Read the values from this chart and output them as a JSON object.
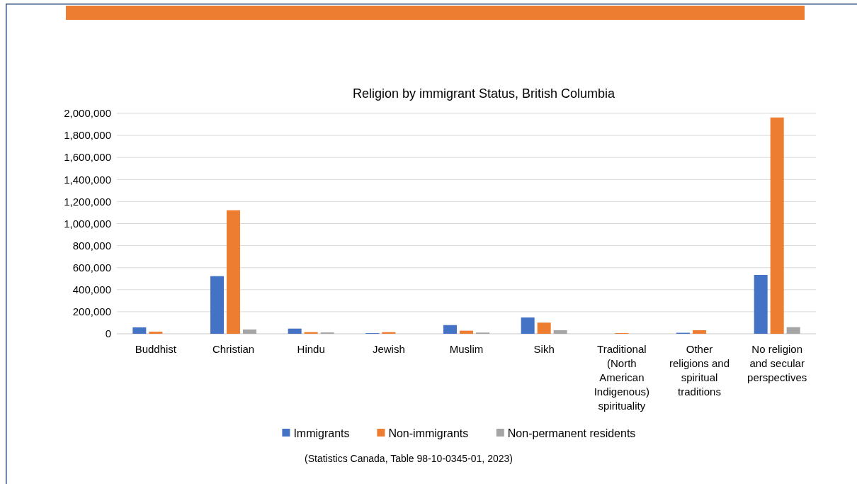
{
  "chart_data": {
    "type": "bar",
    "title": "Religion by immigrant Status, British Columbia",
    "categories": [
      "Buddhist",
      "Christian",
      "Hindu",
      "Jewish",
      "Muslim",
      "Sikh",
      "Traditional (North American Indigenous) spirituality",
      "Other religions and spiritual traditions",
      "No religion and secular perspectives"
    ],
    "series": [
      {
        "name": "Immigrants",
        "color": "#4472c4",
        "values": [
          58000,
          523000,
          47000,
          6000,
          79000,
          148000,
          null,
          9000,
          534000
        ]
      },
      {
        "name": "Non-immigrants",
        "color": "#ed7d31",
        "values": [
          19000,
          1121000,
          15000,
          15000,
          28000,
          101000,
          7000,
          32000,
          1963000
        ]
      },
      {
        "name": "Non-permanent residents",
        "color": "#a5a5a5",
        "values": [
          null,
          39000,
          12000,
          null,
          11000,
          32000,
          null,
          null,
          60000
        ]
      }
    ],
    "ylim": [
      0,
      2000000
    ],
    "yticks": [
      {
        "value": 0,
        "label": "0"
      },
      {
        "value": 200000,
        "label": "200,000"
      },
      {
        "value": 400000,
        "label": "400,000"
      },
      {
        "value": 600000,
        "label": "600,000"
      },
      {
        "value": 800000,
        "label": "800,000"
      },
      {
        "value": 1000000,
        "label": "1,000,000"
      },
      {
        "value": 1200000,
        "label": "1,200,000"
      },
      {
        "value": 1400000,
        "label": "1,400,000"
      },
      {
        "value": 1600000,
        "label": "1,600,000"
      },
      {
        "value": 1800000,
        "label": "1,800,000"
      },
      {
        "value": 2000000,
        "label": "2,000,000"
      }
    ],
    "grid": "y",
    "legend": "bottom",
    "annotations": [
      "(Statistics Canada, Table 98-10-0345-01, 2023)"
    ]
  }
}
